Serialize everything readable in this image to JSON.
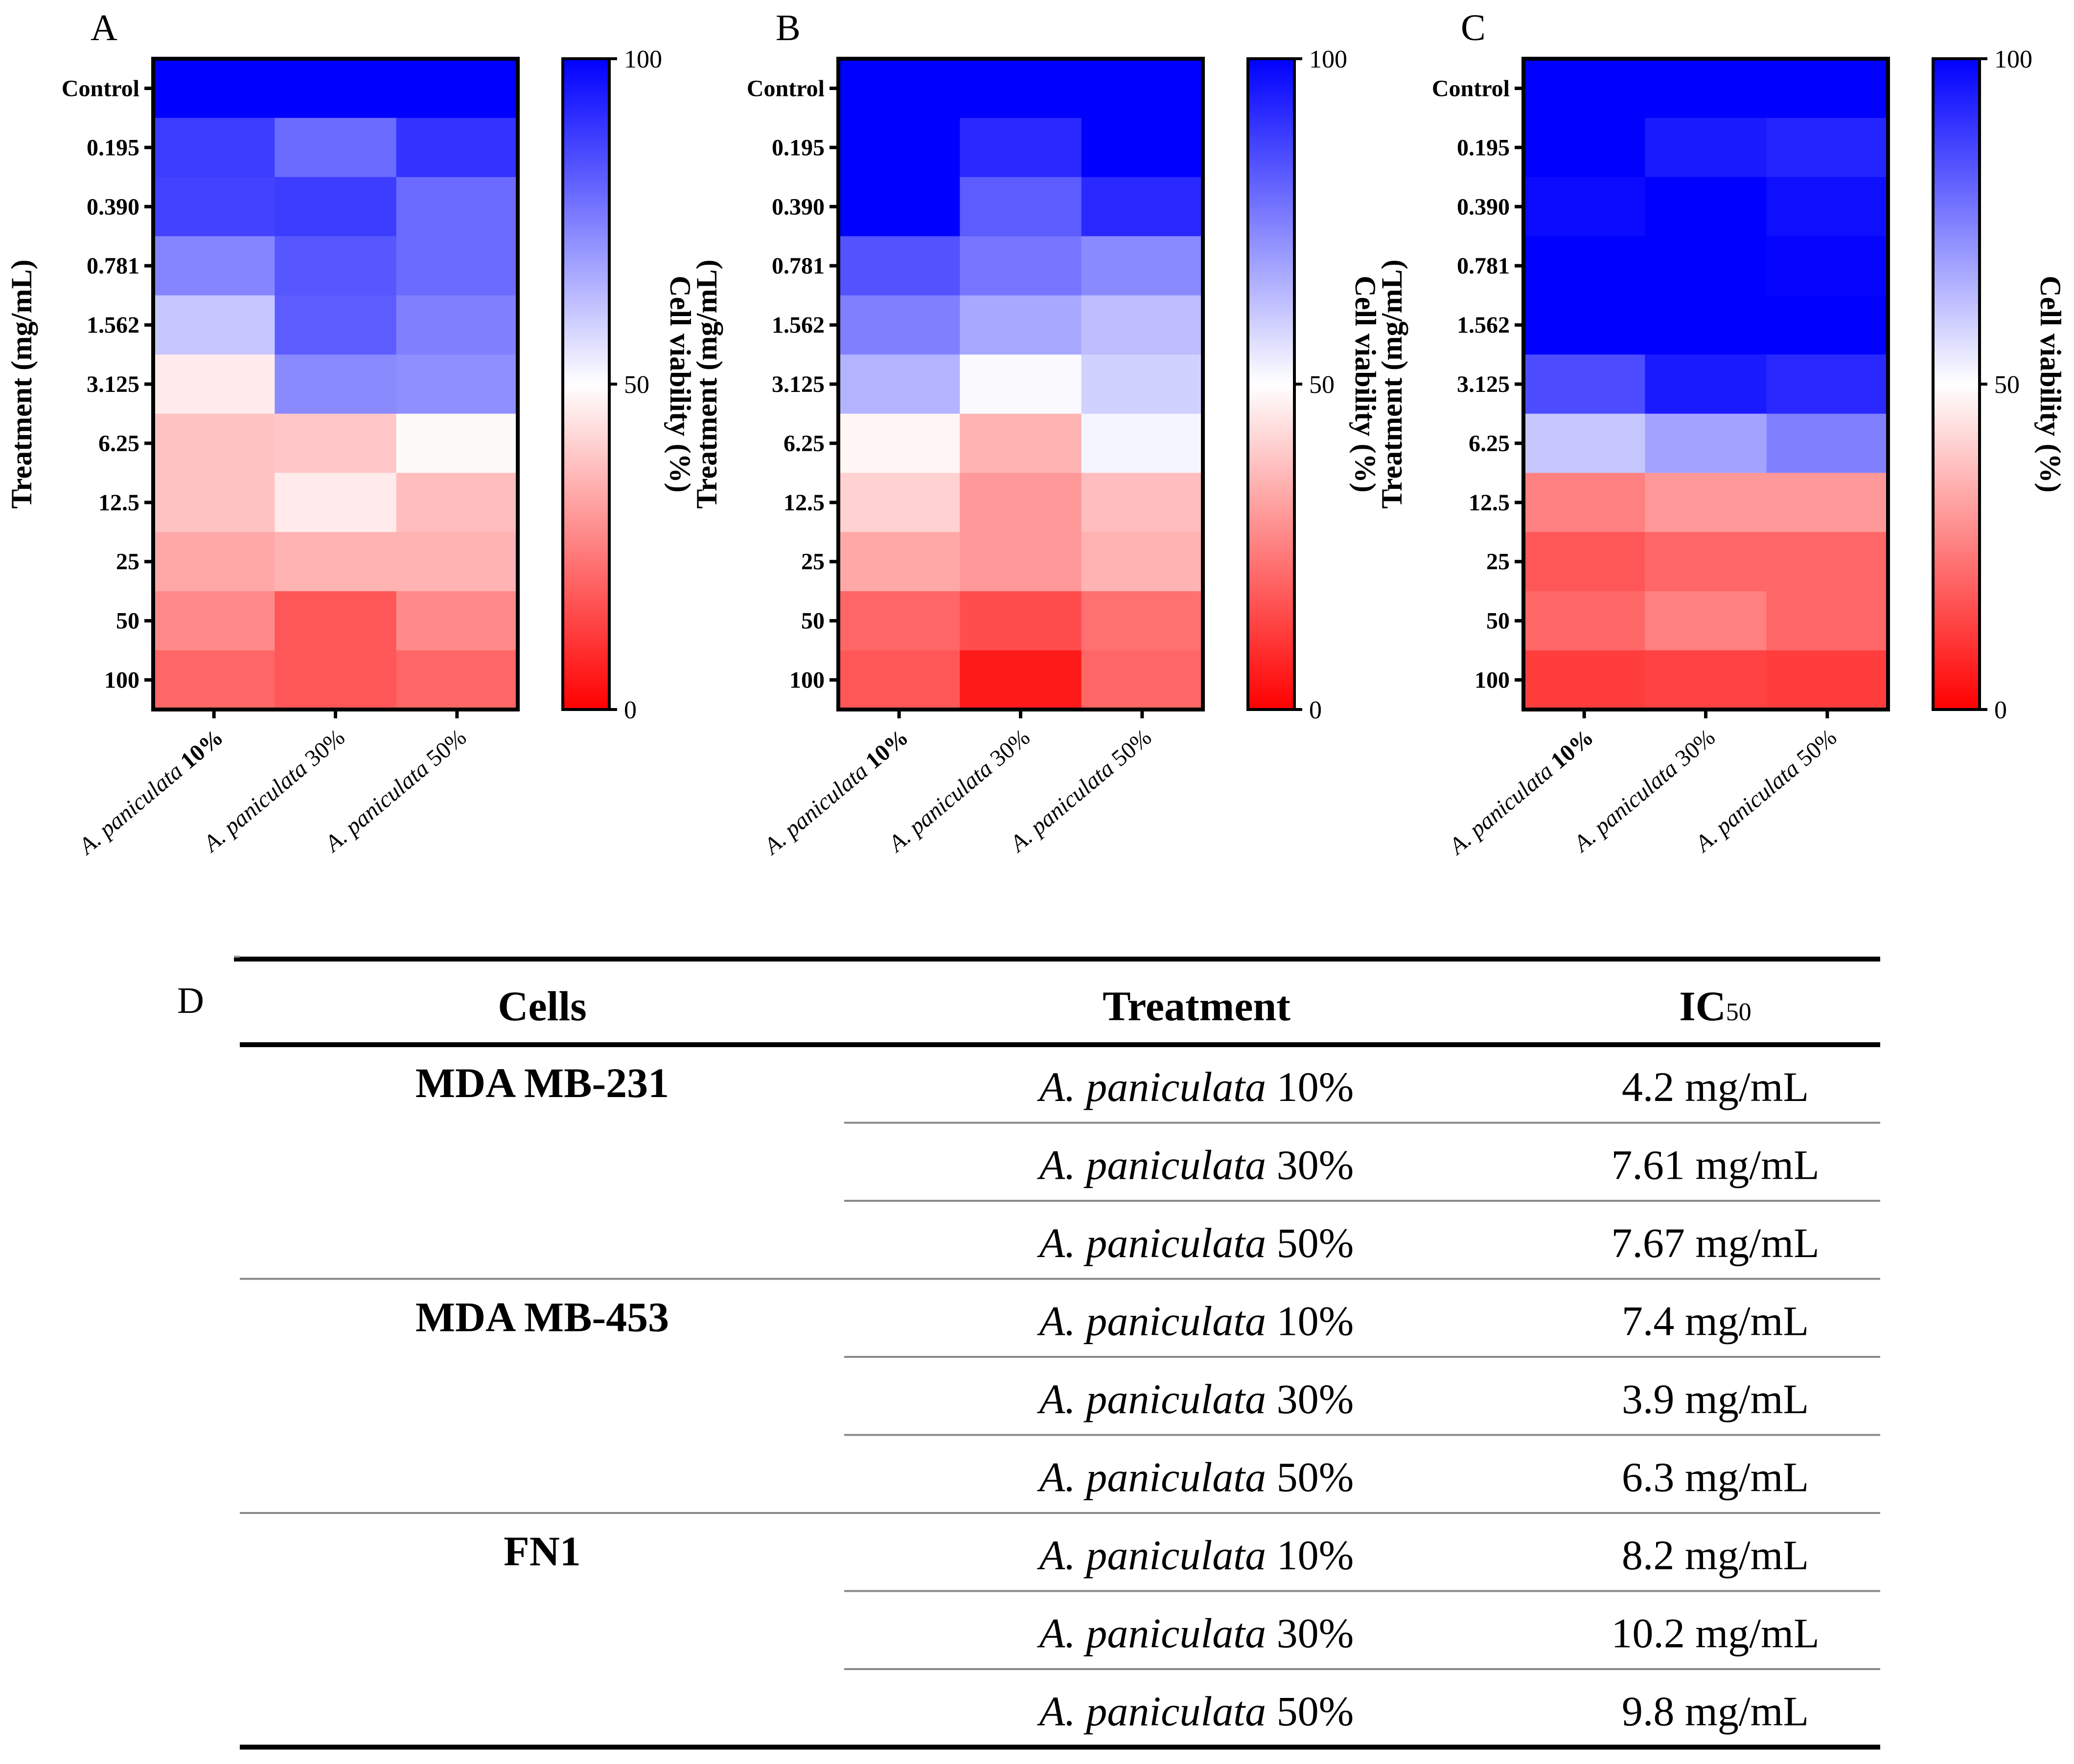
{
  "chart_data": [
    {
      "type": "heatmap",
      "panel": "A",
      "ylabel": "Treatment (mg/mL)",
      "colorbar_label": "Cell viability (%)",
      "colorbar_ticks": [
        "0",
        "50",
        "100"
      ],
      "color_range": [
        0,
        100
      ],
      "colormap": {
        "low": "#ff0000",
        "mid": "#ffffff",
        "high": "#0000ff"
      },
      "rows": [
        "Control",
        "0.195",
        "0.390",
        "0.781",
        "1.562",
        "3.125",
        "6.25",
        "12.5",
        "25",
        "50",
        "100"
      ],
      "columns": [
        {
          "species": "A. paniculata",
          "pct": "10%"
        },
        {
          "species": "A. paniculata",
          "pct": "30%"
        },
        {
          "species": "A. paniculata",
          "pct": "50%"
        }
      ],
      "values": [
        [
          100,
          100,
          100
        ],
        [
          88,
          79,
          90
        ],
        [
          87,
          88,
          79
        ],
        [
          74,
          83,
          79
        ],
        [
          61,
          82,
          75
        ],
        [
          46,
          73,
          72
        ],
        [
          38,
          39,
          49
        ],
        [
          38,
          46,
          37
        ],
        [
          33,
          35,
          35
        ],
        [
          27,
          17,
          27
        ],
        [
          20,
          17,
          20
        ]
      ]
    },
    {
      "type": "heatmap",
      "panel": "B",
      "ylabel": "Treatment (mg/mL)",
      "colorbar_label": "Cell viability (%)",
      "colorbar_ticks": [
        "0",
        "50",
        "100"
      ],
      "color_range": [
        0,
        100
      ],
      "colormap": {
        "low": "#ff0000",
        "mid": "#ffffff",
        "high": "#0000ff"
      },
      "rows": [
        "Control",
        "0.195",
        "0.390",
        "0.781",
        "1.562",
        "3.125",
        "6.25",
        "12.5",
        "25",
        "50",
        "100"
      ],
      "columns": [
        {
          "species": "A. paniculata",
          "pct": "10%"
        },
        {
          "species": "A. paniculata",
          "pct": "30%"
        },
        {
          "species": "A. paniculata",
          "pct": "50%"
        }
      ],
      "values": [
        [
          100,
          100,
          100
        ],
        [
          100,
          92,
          100
        ],
        [
          100,
          82,
          92
        ],
        [
          84,
          77,
          73
        ],
        [
          75,
          67,
          63
        ],
        [
          65,
          51,
          59
        ],
        [
          48,
          35,
          52
        ],
        [
          41,
          30,
          37
        ],
        [
          33,
          30,
          35
        ],
        [
          20,
          15,
          22
        ],
        [
          17,
          5,
          20
        ]
      ]
    },
    {
      "type": "heatmap",
      "panel": "C",
      "ylabel": "Treatment (mg/mL)",
      "colorbar_label": "Cell viability (%)",
      "colorbar_ticks": [
        "0",
        "50",
        "100"
      ],
      "color_range": [
        0,
        100
      ],
      "colormap": {
        "low": "#ff0000",
        "mid": "#ffffff",
        "high": "#0000ff"
      },
      "rows": [
        "Control",
        "0.195",
        "0.390",
        "0.781",
        "1.562",
        "3.125",
        "6.25",
        "12.5",
        "25",
        "50",
        "100"
      ],
      "columns": [
        {
          "species": "A. paniculata",
          "pct": "10%"
        },
        {
          "species": "A. paniculata",
          "pct": "30%"
        },
        {
          "species": "A. paniculata",
          "pct": "50%"
        }
      ],
      "values": [
        [
          100,
          100,
          100
        ],
        [
          100,
          95,
          93
        ],
        [
          98,
          100,
          97
        ],
        [
          100,
          100,
          99
        ],
        [
          100,
          100,
          100
        ],
        [
          85,
          95,
          92
        ],
        [
          61,
          68,
          75
        ],
        [
          25,
          30,
          30
        ],
        [
          17,
          20,
          20
        ],
        [
          20,
          25,
          20
        ],
        [
          12,
          13,
          12
        ]
      ]
    }
  ],
  "table": {
    "panel": "D",
    "headers": {
      "cells": "Cells",
      "treatment": "Treatment",
      "ic50_main": "IC",
      "ic50_sub": "50"
    },
    "rows": [
      {
        "cell": "MDA MB-231",
        "species": "A. paniculata",
        "pct": "10%",
        "ic50": "4.2 mg/mL"
      },
      {
        "cell": "",
        "species": "A. paniculata",
        "pct": "30%",
        "ic50": "7.61 mg/mL"
      },
      {
        "cell": "",
        "species": "A. paniculata",
        "pct": "50%",
        "ic50": "7.67 mg/mL"
      },
      {
        "cell": "MDA MB-453",
        "species": "A. paniculata",
        "pct": "10%",
        "ic50": "7.4 mg/mL"
      },
      {
        "cell": "",
        "species": "A. paniculata",
        "pct": "30%",
        "ic50": "3.9 mg/mL"
      },
      {
        "cell": "",
        "species": "A. paniculata",
        "pct": "50%",
        "ic50": "6.3 mg/mL"
      },
      {
        "cell": "FN1",
        "species": "A. paniculata",
        "pct": "10%",
        "ic50": "8.2 mg/mL"
      },
      {
        "cell": "",
        "species": "A. paniculata",
        "pct": "30%",
        "ic50": "10.2 mg/mL"
      },
      {
        "cell": "",
        "species": "A. paniculata",
        "pct": "50%",
        "ic50": "9.8 mg/mL"
      }
    ]
  }
}
